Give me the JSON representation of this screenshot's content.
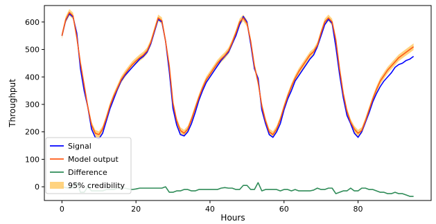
{
  "chart_data": {
    "type": "line",
    "title": "",
    "xlabel": "Hours",
    "ylabel": "Throughput",
    "xlim": [
      -4.75,
      99.75
    ],
    "ylim": [
      -50,
      660
    ],
    "xticks": [
      0,
      20,
      40,
      60,
      80
    ],
    "yticks": [
      0,
      100,
      200,
      300,
      400,
      500,
      600
    ],
    "grid": false,
    "legend_position": "lower left",
    "colors": {
      "signal": "#0000ff",
      "model": "#ff5a14",
      "difference": "#2e8b57",
      "band": "#ffc455"
    },
    "band_halfwidth": 12,
    "series": [
      {
        "name": "Signal",
        "x": [
          0,
          1,
          2,
          3,
          4,
          5,
          6,
          7,
          8,
          9,
          10,
          11,
          12,
          13,
          14,
          15,
          16,
          17,
          18,
          19,
          20,
          21,
          22,
          23,
          24,
          25,
          26,
          27,
          28,
          29,
          30,
          31,
          32,
          33,
          34,
          35,
          36,
          37,
          38,
          39,
          40,
          41,
          42,
          43,
          44,
          45,
          46,
          47,
          48,
          49,
          50,
          51,
          52,
          53,
          54,
          55,
          56,
          57,
          58,
          59,
          60,
          61,
          62,
          63,
          64,
          65,
          66,
          67,
          68,
          69,
          70,
          71,
          72,
          73,
          74,
          75,
          76,
          77,
          78,
          79,
          80,
          81,
          82,
          83,
          84,
          85,
          86,
          87,
          88,
          89,
          90,
          91,
          92,
          93,
          94,
          95
        ],
        "y": [
          550,
          605,
          630,
          618,
          560,
          430,
          350,
          290,
          210,
          180,
          175,
          195,
          240,
          285,
          320,
          355,
          385,
          405,
          420,
          435,
          450,
          465,
          475,
          490,
          520,
          565,
          610,
          600,
          530,
          420,
          285,
          225,
          190,
          185,
          200,
          230,
          270,
          315,
          350,
          380,
          400,
          420,
          440,
          460,
          475,
          490,
          520,
          550,
          590,
          620,
          600,
          520,
          430,
          395,
          280,
          230,
          190,
          180,
          200,
          230,
          280,
          320,
          350,
          385,
          405,
          425,
          445,
          465,
          480,
          510,
          550,
          590,
          610,
          595,
          510,
          410,
          325,
          260,
          230,
          195,
          180,
          200,
          235,
          270,
          310,
          340,
          365,
          385,
          400,
          415,
          435,
          445,
          450,
          460,
          465,
          475
        ]
      },
      {
        "name": "Model output",
        "x": [
          0,
          1,
          2,
          3,
          4,
          5,
          6,
          7,
          8,
          9,
          10,
          11,
          12,
          13,
          14,
          15,
          16,
          17,
          18,
          19,
          20,
          21,
          22,
          23,
          24,
          25,
          26,
          27,
          28,
          29,
          30,
          31,
          32,
          33,
          34,
          35,
          36,
          37,
          38,
          39,
          40,
          41,
          42,
          43,
          44,
          45,
          46,
          47,
          48,
          49,
          50,
          51,
          52,
          53,
          54,
          55,
          56,
          57,
          58,
          59,
          60,
          61,
          62,
          63,
          64,
          65,
          66,
          67,
          68,
          69,
          70,
          71,
          72,
          73,
          74,
          75,
          76,
          77,
          78,
          79,
          80,
          81,
          82,
          83,
          84,
          85,
          86,
          87,
          88,
          89,
          90,
          91,
          92,
          93,
          94,
          95
        ],
        "y": [
          550,
          608,
          635,
          622,
          545,
          450,
          370,
          290,
          225,
          195,
          190,
          210,
          250,
          295,
          330,
          360,
          390,
          410,
          428,
          445,
          458,
          470,
          480,
          495,
          525,
          570,
          615,
          605,
          530,
          440,
          305,
          240,
          205,
          195,
          210,
          245,
          285,
          325,
          360,
          390,
          410,
          430,
          450,
          465,
          478,
          495,
          525,
          560,
          600,
          615,
          595,
          530,
          440,
          380,
          295,
          240,
          200,
          190,
          210,
          245,
          290,
          330,
          365,
          395,
          420,
          440,
          460,
          480,
          492,
          515,
          560,
          600,
          615,
          600,
          535,
          430,
          340,
          275,
          235,
          210,
          195,
          205,
          240,
          280,
          320,
          355,
          385,
          405,
          425,
          440,
          455,
          470,
          480,
          490,
          500,
          510
        ]
      },
      {
        "name": "Difference",
        "x": [
          0,
          1,
          2,
          3,
          4,
          5,
          6,
          7,
          8,
          9,
          10,
          11,
          12,
          13,
          14,
          15,
          16,
          17,
          18,
          19,
          20,
          21,
          22,
          23,
          24,
          25,
          26,
          27,
          28,
          29,
          30,
          31,
          32,
          33,
          34,
          35,
          36,
          37,
          38,
          39,
          40,
          41,
          42,
          43,
          44,
          45,
          46,
          47,
          48,
          49,
          50,
          51,
          52,
          53,
          54,
          55,
          56,
          57,
          58,
          59,
          60,
          61,
          62,
          63,
          64,
          65,
          66,
          67,
          68,
          69,
          70,
          71,
          72,
          73,
          74,
          75,
          76,
          77,
          78,
          79,
          80,
          81,
          82,
          83,
          84,
          85,
          86,
          87,
          88,
          89,
          90,
          91,
          92,
          93,
          94,
          95
        ],
        "y": [
          0,
          -3,
          -5,
          -4,
          15,
          -20,
          -20,
          0,
          -15,
          -15,
          -15,
          -15,
          -10,
          -10,
          -10,
          -5,
          -5,
          -5,
          -8,
          -10,
          -8,
          -5,
          -5,
          -5,
          -5,
          -5,
          -5,
          -5,
          0,
          -20,
          -20,
          -15,
          -15,
          -10,
          -10,
          -15,
          -15,
          -10,
          -10,
          -10,
          -10,
          -10,
          -10,
          -5,
          -3,
          -5,
          -5,
          -10,
          -10,
          5,
          5,
          -10,
          -10,
          15,
          -15,
          -10,
          -10,
          -10,
          -10,
          -15,
          -10,
          -10,
          -15,
          -10,
          -15,
          -15,
          -15,
          -15,
          -12,
          -5,
          -10,
          -10,
          -5,
          -5,
          -25,
          -20,
          -15,
          -15,
          -5,
          -15,
          -15,
          -5,
          -5,
          -10,
          -10,
          -15,
          -20,
          -20,
          -25,
          -25,
          -20,
          -25,
          -25,
          -30,
          -35,
          -35
        ]
      }
    ],
    "legend": [
      {
        "label": "Signal",
        "kind": "line",
        "color": "#0000ff"
      },
      {
        "label": "Model output",
        "kind": "line",
        "color": "#ff5a14"
      },
      {
        "label": "Difference",
        "kind": "line",
        "color": "#2e8b57"
      },
      {
        "label": "95% credibility",
        "kind": "patch",
        "color": "#ffc455"
      }
    ]
  }
}
